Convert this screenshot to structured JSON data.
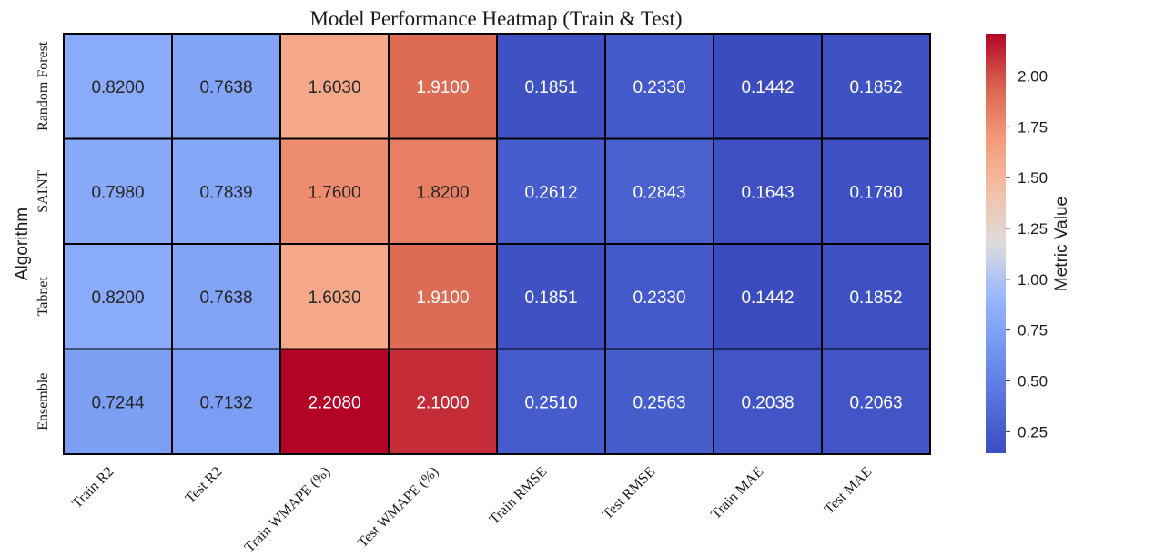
{
  "chart_data": {
    "type": "heatmap",
    "title": "Model Performance Heatmap (Train & Test)",
    "ylabel": "Algorithm",
    "xlabel": "",
    "colorbar_label": "Metric Value",
    "colormap": "coolwarm",
    "vmin": 0.1442,
    "vmax": 2.208,
    "colorbar_ticks": [
      "0.25",
      "0.50",
      "0.75",
      "1.00",
      "1.25",
      "1.50",
      "1.75",
      "2.00"
    ],
    "rows": [
      "Random Forest",
      "SAINT",
      "Tabnet",
      "Ensemble"
    ],
    "columns": [
      "Train R2",
      "Test R2",
      "Train WMAPE (%)",
      "Test WMAPE (%)",
      "Train RMSE",
      "Test RMSE",
      "Train MAE",
      "Test MAE"
    ],
    "values": [
      [
        0.82,
        0.7638,
        1.603,
        1.91,
        0.1851,
        0.233,
        0.1442,
        0.1852
      ],
      [
        0.798,
        0.7839,
        1.76,
        1.82,
        0.2612,
        0.2843,
        0.1643,
        0.178
      ],
      [
        0.82,
        0.7638,
        1.603,
        1.91,
        0.1851,
        0.233,
        0.1442,
        0.1852
      ],
      [
        0.7244,
        0.7132,
        2.208,
        2.1,
        0.251,
        0.2563,
        0.2038,
        0.2063
      ]
    ],
    "value_format": "0.0000",
    "cell_border_color": "#000000",
    "grid": false
  }
}
